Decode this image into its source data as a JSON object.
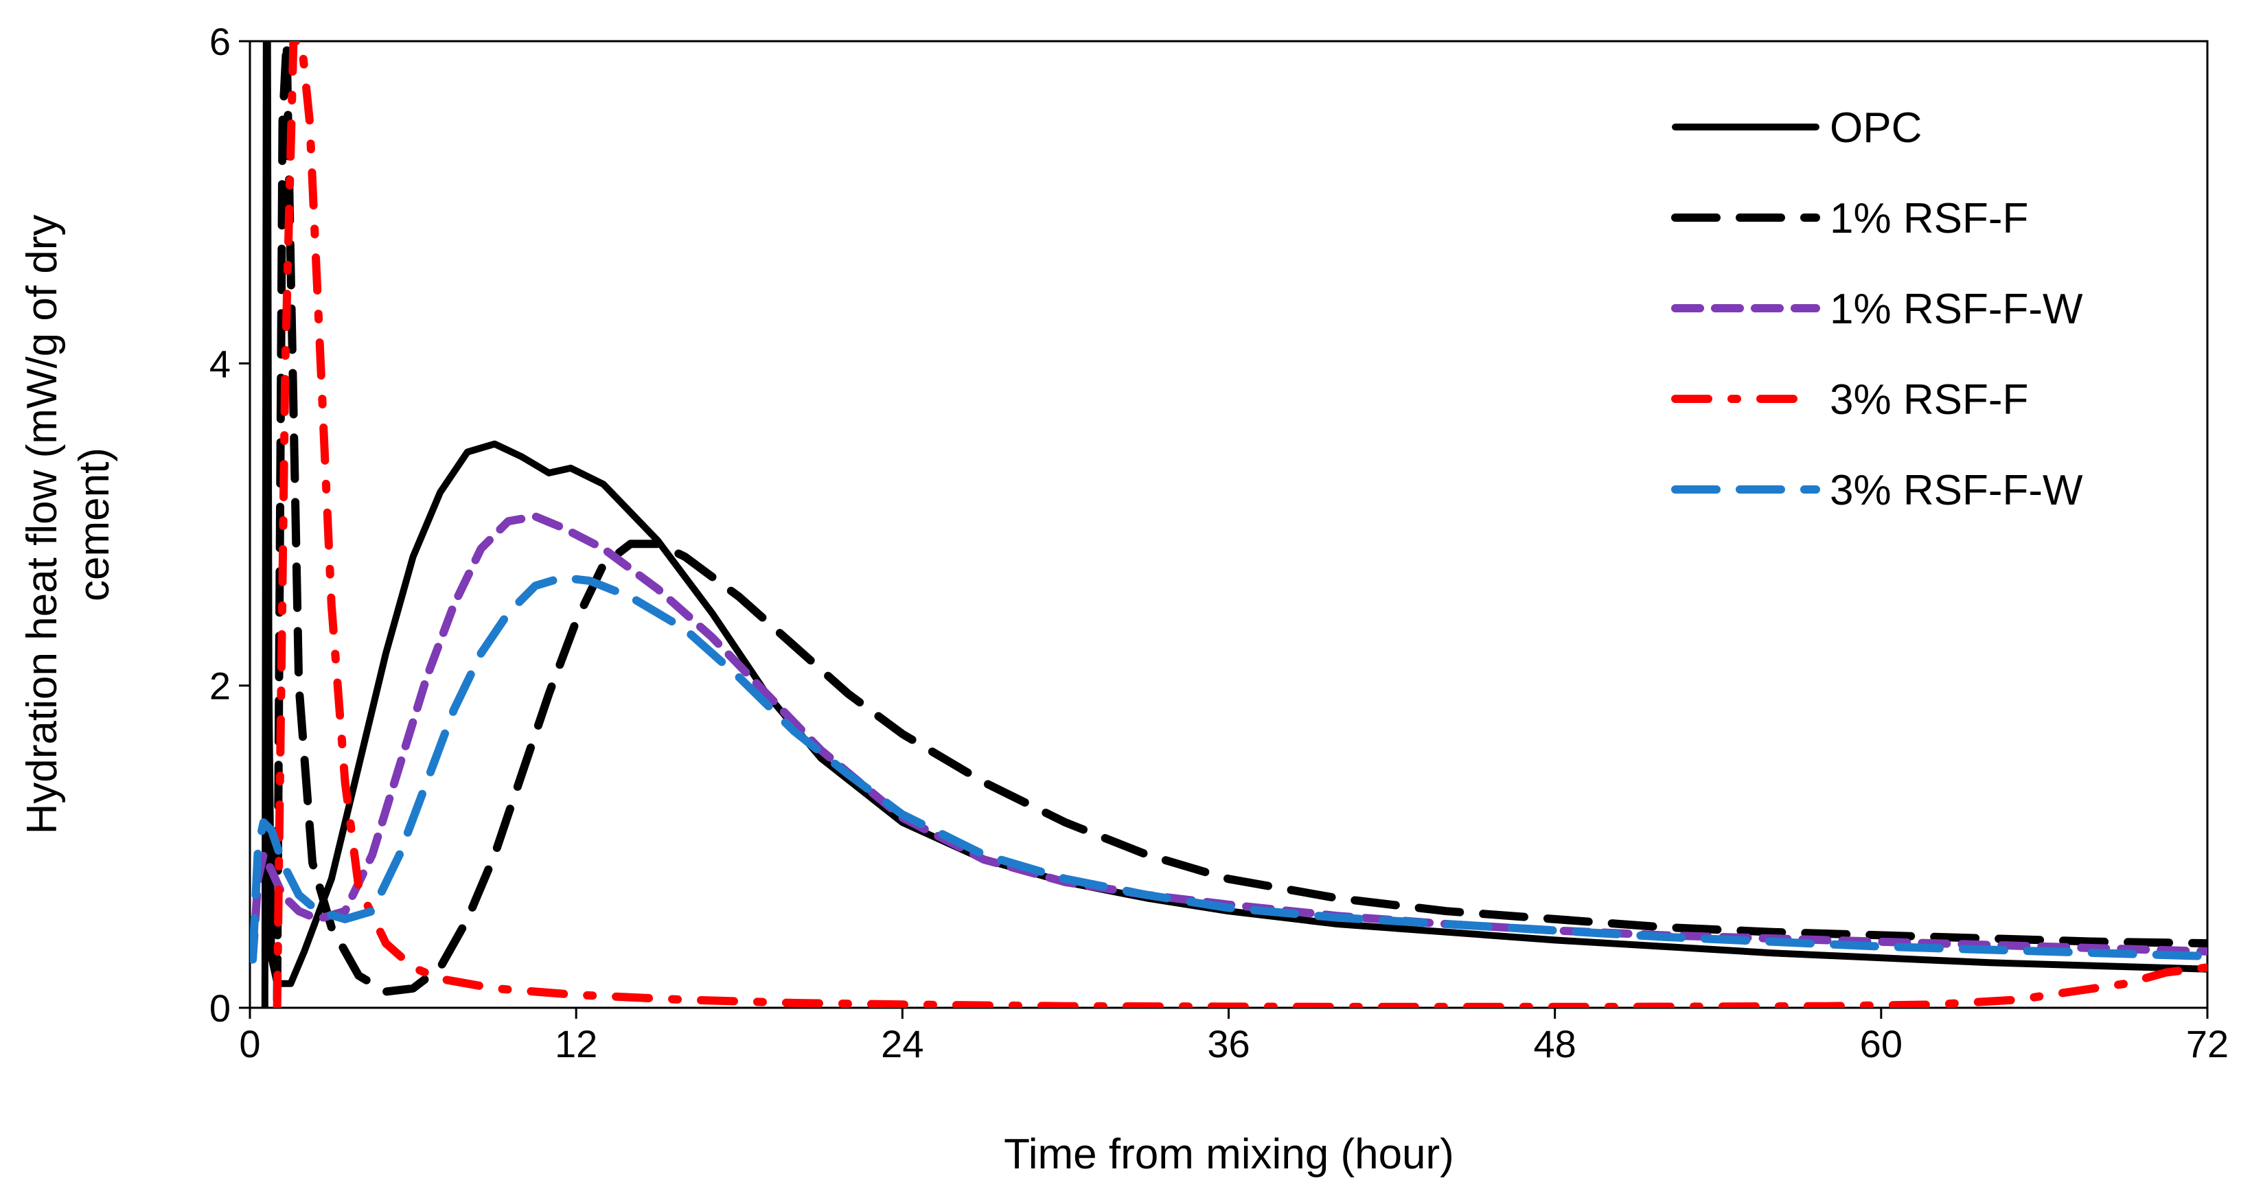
{
  "chart_data": {
    "type": "line",
    "title": "",
    "xlabel": "Time from mixing (hour)",
    "ylabel_lines": [
      "Hydration heat flow (mW/g of dry",
      "cement)"
    ],
    "xlim": [
      0,
      72
    ],
    "ylim": [
      0,
      6
    ],
    "xticks": [
      0,
      12,
      24,
      36,
      48,
      60,
      72
    ],
    "yticks": [
      0,
      2,
      4,
      6
    ],
    "grid": false,
    "legend_position": "top-right",
    "series": [
      {
        "name": "OPC",
        "color": "#000000",
        "dash": "solid",
        "points": [
          [
            0.55,
            0
          ],
          [
            0.6,
            6
          ],
          [
            0.65,
            6
          ],
          [
            0.7,
            2.0
          ],
          [
            0.8,
            0.3
          ],
          [
            1.0,
            0.15
          ],
          [
            1.5,
            0.15
          ],
          [
            2.0,
            0.35
          ],
          [
            3.0,
            0.8
          ],
          [
            4.0,
            1.5
          ],
          [
            5.0,
            2.2
          ],
          [
            6.0,
            2.8
          ],
          [
            7.0,
            3.2
          ],
          [
            8.0,
            3.45
          ],
          [
            9.0,
            3.5
          ],
          [
            10.0,
            3.42
          ],
          [
            11.0,
            3.32
          ],
          [
            11.8,
            3.35
          ],
          [
            13.0,
            3.25
          ],
          [
            15.0,
            2.9
          ],
          [
            17.0,
            2.45
          ],
          [
            19.0,
            1.95
          ],
          [
            21.0,
            1.55
          ],
          [
            24.0,
            1.15
          ],
          [
            27.0,
            0.92
          ],
          [
            30.0,
            0.78
          ],
          [
            33.0,
            0.68
          ],
          [
            36.0,
            0.6
          ],
          [
            40.0,
            0.52
          ],
          [
            44.0,
            0.47
          ],
          [
            48.0,
            0.42
          ],
          [
            52.0,
            0.38
          ],
          [
            56.0,
            0.34
          ],
          [
            60.0,
            0.31
          ],
          [
            64.0,
            0.28
          ],
          [
            68.0,
            0.26
          ],
          [
            72.0,
            0.24
          ]
        ]
      },
      {
        "name": "1% RSF-F",
        "color": "#000000",
        "dash": "long",
        "points": [
          [
            1.0,
            0.05
          ],
          [
            1.2,
            5.5
          ],
          [
            1.35,
            6.0
          ],
          [
            1.5,
            4.6
          ],
          [
            1.8,
            2.0
          ],
          [
            2.3,
            0.9
          ],
          [
            3.0,
            0.5
          ],
          [
            4.0,
            0.2
          ],
          [
            5.0,
            0.1
          ],
          [
            6.0,
            0.12
          ],
          [
            7.0,
            0.25
          ],
          [
            8.0,
            0.55
          ],
          [
            9.0,
            0.95
          ],
          [
            10.0,
            1.45
          ],
          [
            11.0,
            1.95
          ],
          [
            12.0,
            2.4
          ],
          [
            13.0,
            2.75
          ],
          [
            14.0,
            2.88
          ],
          [
            15.0,
            2.88
          ],
          [
            16.0,
            2.8
          ],
          [
            18.0,
            2.55
          ],
          [
            20.0,
            2.25
          ],
          [
            22.0,
            1.95
          ],
          [
            24.0,
            1.7
          ],
          [
            27.0,
            1.4
          ],
          [
            30.0,
            1.15
          ],
          [
            33.0,
            0.95
          ],
          [
            36.0,
            0.8
          ],
          [
            40.0,
            0.68
          ],
          [
            44.0,
            0.6
          ],
          [
            48.0,
            0.55
          ],
          [
            52.0,
            0.5
          ],
          [
            56.0,
            0.47
          ],
          [
            60.0,
            0.45
          ],
          [
            64.0,
            0.43
          ],
          [
            68.0,
            0.41
          ],
          [
            72.0,
            0.4
          ]
        ]
      },
      {
        "name": "1% RSF-F-W",
        "color": "#7e3bb5",
        "dash": "short",
        "points": [
          [
            0.1,
            0.3
          ],
          [
            0.3,
            0.8
          ],
          [
            0.5,
            0.95
          ],
          [
            0.8,
            0.85
          ],
          [
            1.2,
            0.7
          ],
          [
            1.8,
            0.6
          ],
          [
            2.5,
            0.55
          ],
          [
            3.5,
            0.6
          ],
          [
            4.5,
            0.95
          ],
          [
            5.5,
            1.5
          ],
          [
            6.5,
            2.05
          ],
          [
            7.5,
            2.5
          ],
          [
            8.5,
            2.85
          ],
          [
            9.5,
            3.02
          ],
          [
            10.5,
            3.05
          ],
          [
            11.5,
            2.98
          ],
          [
            13.0,
            2.85
          ],
          [
            15.0,
            2.6
          ],
          [
            17.0,
            2.3
          ],
          [
            19.0,
            1.95
          ],
          [
            21.0,
            1.6
          ],
          [
            24.0,
            1.18
          ],
          [
            27.0,
            0.92
          ],
          [
            30.0,
            0.78
          ],
          [
            33.0,
            0.7
          ],
          [
            36.0,
            0.64
          ],
          [
            40.0,
            0.57
          ],
          [
            44.0,
            0.52
          ],
          [
            48.0,
            0.48
          ],
          [
            52.0,
            0.45
          ],
          [
            56.0,
            0.43
          ],
          [
            60.0,
            0.41
          ],
          [
            64.0,
            0.39
          ],
          [
            68.0,
            0.37
          ],
          [
            72.0,
            0.35
          ]
        ]
      },
      {
        "name": "3% RSF-F",
        "color": "#ff0000",
        "dash": "dashdot",
        "points": [
          [
            1.0,
            0.0
          ],
          [
            1.3,
            4.0
          ],
          [
            1.6,
            6.0
          ],
          [
            1.9,
            6.0
          ],
          [
            2.2,
            5.5
          ],
          [
            2.6,
            4.0
          ],
          [
            3.0,
            2.5
          ],
          [
            3.5,
            1.4
          ],
          [
            4.0,
            0.75
          ],
          [
            5.0,
            0.4
          ],
          [
            6.0,
            0.25
          ],
          [
            7.0,
            0.18
          ],
          [
            9.0,
            0.12
          ],
          [
            12.0,
            0.08
          ],
          [
            16.0,
            0.05
          ],
          [
            20.0,
            0.03
          ],
          [
            24.0,
            0.02
          ],
          [
            30.0,
            0.01
          ],
          [
            40.0,
            0.005
          ],
          [
            50.0,
            0.005
          ],
          [
            58.0,
            0.01
          ],
          [
            62.0,
            0.02
          ],
          [
            65.0,
            0.05
          ],
          [
            67.0,
            0.1
          ],
          [
            69.0,
            0.15
          ],
          [
            70.5,
            0.22
          ],
          [
            72.0,
            0.25
          ]
        ]
      },
      {
        "name": "3% RSF-F-W",
        "color": "#1f7ccc",
        "dash": "long",
        "points": [
          [
            0.1,
            0.3
          ],
          [
            0.3,
            1.0
          ],
          [
            0.5,
            1.15
          ],
          [
            0.8,
            1.1
          ],
          [
            1.2,
            0.9
          ],
          [
            1.8,
            0.7
          ],
          [
            2.5,
            0.6
          ],
          [
            3.5,
            0.55
          ],
          [
            4.5,
            0.6
          ],
          [
            5.5,
            0.95
          ],
          [
            6.5,
            1.4
          ],
          [
            7.5,
            1.85
          ],
          [
            8.5,
            2.2
          ],
          [
            9.5,
            2.45
          ],
          [
            10.5,
            2.62
          ],
          [
            11.5,
            2.67
          ],
          [
            12.5,
            2.65
          ],
          [
            14.0,
            2.55
          ],
          [
            16.0,
            2.35
          ],
          [
            18.0,
            2.05
          ],
          [
            20.0,
            1.72
          ],
          [
            22.0,
            1.45
          ],
          [
            24.0,
            1.2
          ],
          [
            27.0,
            0.95
          ],
          [
            30.0,
            0.8
          ],
          [
            33.0,
            0.7
          ],
          [
            36.0,
            0.62
          ],
          [
            40.0,
            0.56
          ],
          [
            44.0,
            0.52
          ],
          [
            48.0,
            0.48
          ],
          [
            52.0,
            0.44
          ],
          [
            56.0,
            0.41
          ],
          [
            60.0,
            0.38
          ],
          [
            64.0,
            0.36
          ],
          [
            68.0,
            0.34
          ],
          [
            72.0,
            0.32
          ]
        ]
      }
    ]
  }
}
